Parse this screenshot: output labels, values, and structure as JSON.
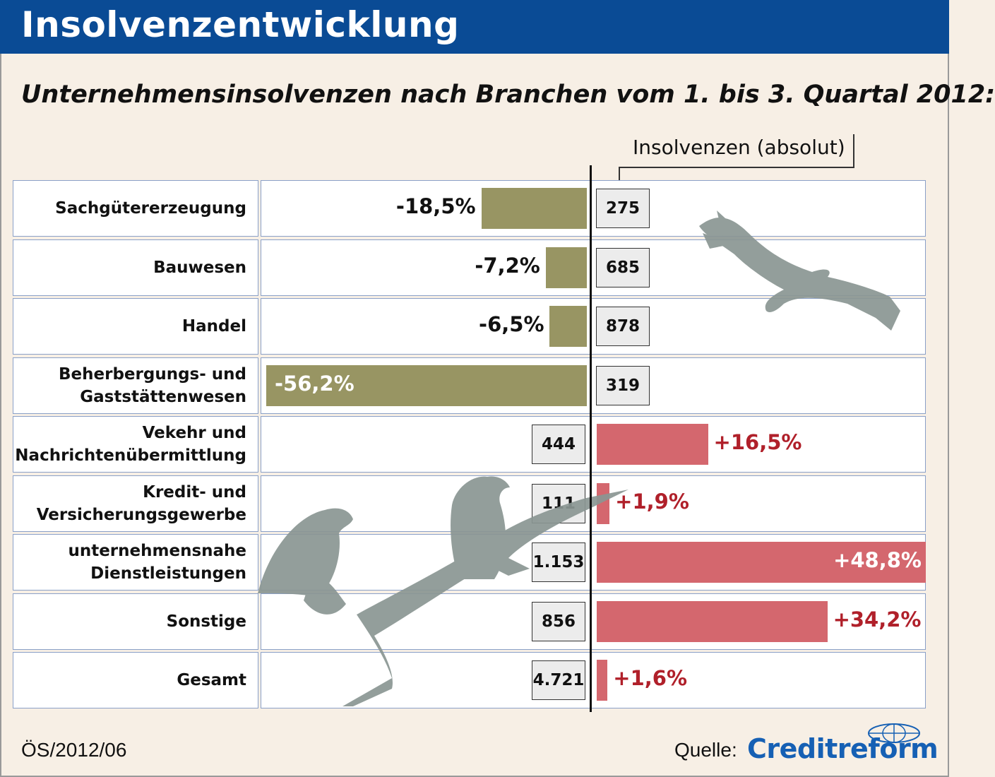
{
  "header": {
    "title": "Insolvenzentwicklung"
  },
  "subtitle": "Unternehmensinsolvenzen nach Branchen vom 1. bis 3. Quartal 2012:",
  "column_label": "Insolvenzen (absolut)",
  "chart_data": {
    "type": "bar",
    "title": "Unternehmensinsolvenzen nach Branchen vom 1. bis 3. Quartal 2012:",
    "categories": [
      "Sachgütererzeugung",
      "Bauwesen",
      "Handel",
      "Beherbergungs- und Gaststättenwesen",
      "Vekehr und Nachrichtenübermittlung",
      "Kredit- und Versicherungsgewerbe",
      "unternehmensnahe Dienstleistungen",
      "Sonstige",
      "Gesamt"
    ],
    "series": [
      {
        "values": [
          -18.5,
          -7.2,
          -6.5,
          -56.2,
          16.5,
          1.9,
          48.8,
          34.2,
          1.6
        ]
      },
      {
        "name": "Insolvenzen (absolut)",
        "values": [
          275,
          685,
          878,
          319,
          444,
          111,
          1153,
          856,
          4721
        ]
      }
    ],
    "rows": [
      {
        "label_lines": [
          "Sachgütererzeugung"
        ],
        "pct_text": "-18,5%",
        "abs_text": "275"
      },
      {
        "label_lines": [
          "Bauwesen"
        ],
        "pct_text": "-7,2%",
        "abs_text": "685"
      },
      {
        "label_lines": [
          "Handel"
        ],
        "pct_text": "-6,5%",
        "abs_text": "878"
      },
      {
        "label_lines": [
          "Beherbergungs- und",
          "Gaststättenwesen"
        ],
        "pct_text": "-56,2%",
        "abs_text": "319"
      },
      {
        "label_lines": [
          "Vekehr und",
          "Nachrichtenübermittlung"
        ],
        "pct_text": "+16,5%",
        "abs_text": "444"
      },
      {
        "label_lines": [
          "Kredit- und",
          "Versicherungsgewerbe"
        ],
        "pct_text": "+1,9%",
        "abs_text": "111"
      },
      {
        "label_lines": [
          "unternehmensnahe",
          "Dienstleistungen"
        ],
        "pct_text": "+48,8%",
        "abs_text": "1.153"
      },
      {
        "label_lines": [
          "Sonstige"
        ],
        "pct_text": "+34,2%",
        "abs_text": "856"
      },
      {
        "label_lines": [
          "Gesamt"
        ],
        "pct_text": "+1,6%",
        "abs_text": "4.721"
      }
    ],
    "colors": {
      "negative": "#989563",
      "positive": "#d4676e",
      "positive_text": "#b0202a"
    }
  },
  "footer": {
    "code": "ÖS/2012/06",
    "source_label": "Quelle:",
    "logo": "Creditreform"
  },
  "icons": [
    "vulture-flying-icon",
    "vultures-on-branch-icon",
    "creditreform-globe-icon"
  ]
}
